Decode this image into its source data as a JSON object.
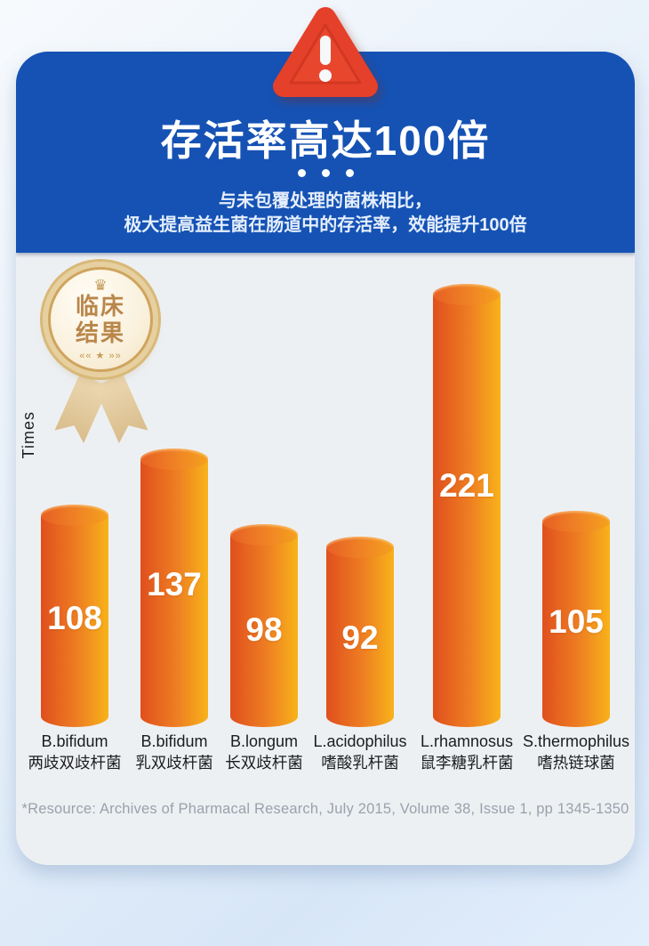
{
  "header": {
    "title": "存活率高达100倍",
    "subtitle_line1": "与未包覆处理的菌株相比，",
    "subtitle_line2": "极大提高益生菌在肠道中的存活率，效能提升100倍"
  },
  "badge": {
    "line1": "临床",
    "line2": "结果",
    "crown_glyph": "♛",
    "ornament": "«« ★ »»"
  },
  "footer": {
    "source": "*Resource: Archives of Pharmacal Research, July 2015, Volume 38, Issue 1, pp 1345-1350"
  },
  "colors": {
    "header_blue": "#1552b4",
    "card_body": "#edf0f3",
    "alert_red": "#e5402a",
    "bar_gradient_left": "#e04f1e",
    "bar_gradient_right": "#f8b31a",
    "bar_top_left": "#e75f24",
    "bar_top_right": "#f5a11d",
    "badge_gold": "#c49a55",
    "value_text": "#ffffff",
    "footer_gray": "#9aa1ab"
  },
  "chart_data": {
    "type": "bar",
    "title": "存活率高达100倍",
    "ylabel": "Times",
    "categories": [
      {
        "en": "B.bifidum",
        "zh": "两歧双歧杆菌"
      },
      {
        "en": "B.bifidum",
        "zh": "乳双歧杆菌"
      },
      {
        "en": "B.longum",
        "zh": "长双歧杆菌"
      },
      {
        "en": "L.acidophilus",
        "zh": "嗜酸乳杆菌"
      },
      {
        "en": "L.rhamnosus",
        "zh": "鼠李糖乳杆菌"
      },
      {
        "en": "S.thermophilus",
        "zh": "嗜热链球菌"
      }
    ],
    "values": [
      108,
      137,
      98,
      92,
      221,
      105
    ],
    "value_labels_on_bars": true,
    "grid": false,
    "legend": "none",
    "x_axis_ticks": "none",
    "y_axis_ticks": "none"
  }
}
